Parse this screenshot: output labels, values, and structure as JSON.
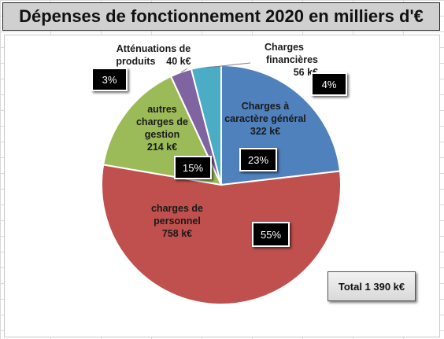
{
  "chart_data": {
    "type": "pie",
    "title": "Dépenses de fonctionnement 2020 en milliers d'€",
    "slices": [
      {
        "lines": [
          "Charges à",
          "caractère général",
          "322 k€"
        ],
        "value": 322,
        "percent": "23%",
        "color": "#4f81bd"
      },
      {
        "lines": [
          "charges de",
          "personnel",
          "758 k€"
        ],
        "value": 758,
        "percent": "55%",
        "color": "#c0504d"
      },
      {
        "lines": [
          "autres",
          "charges de",
          "gestion",
          "214 k€"
        ],
        "value": 214,
        "percent": "15%",
        "color": "#9bbb59"
      },
      {
        "lines": [
          "Atténuations de",
          "produits    40 k€"
        ],
        "value": 40,
        "percent": "3%",
        "color": "#8064a2"
      },
      {
        "lines": [
          "Charges",
          "financières",
          "56 k€"
        ],
        "value": 56,
        "percent": "4%",
        "color": "#4bacc6"
      }
    ],
    "total_label": "Total 1 390 k€"
  }
}
